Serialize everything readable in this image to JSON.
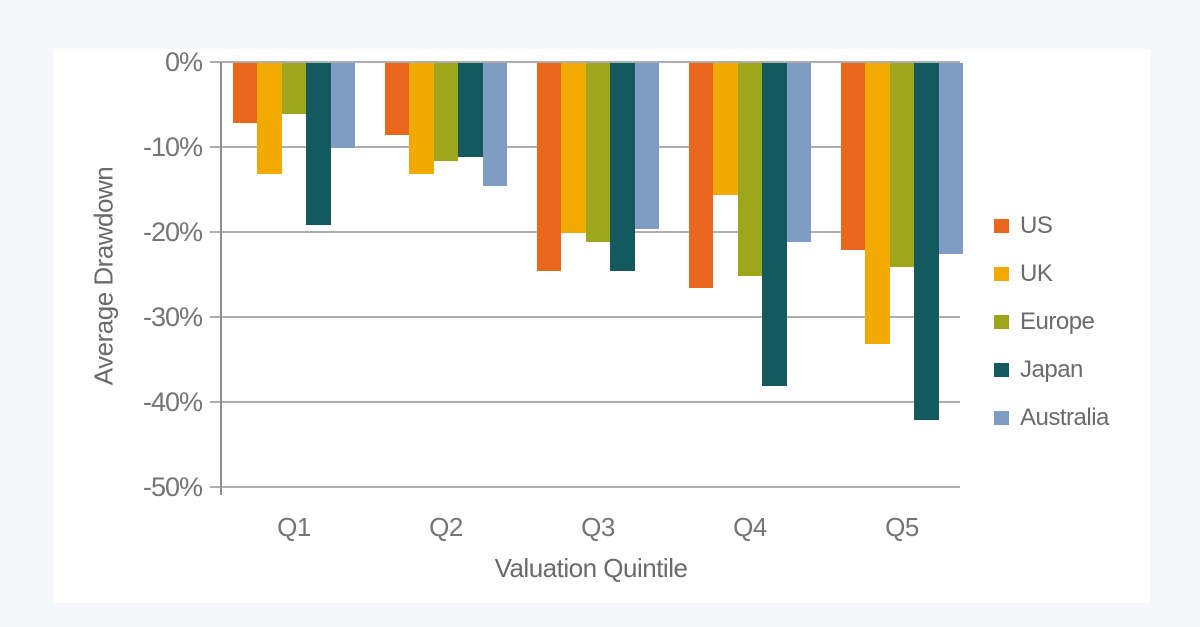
{
  "page": {
    "background_color": "#f5f7fa",
    "panel_color": "#ffffff",
    "gridline_color": "#aeaeae",
    "axis_line_color": "#8e8e8e",
    "text_color": "#757575"
  },
  "chart_data": {
    "type": "bar",
    "title": "",
    "xlabel": "Valuation Quintile",
    "ylabel": "Average Drawdown",
    "categories": [
      "Q1",
      "Q2",
      "Q3",
      "Q4",
      "Q5"
    ],
    "series": [
      {
        "name": "US",
        "color": "#e8671c",
        "values": [
          -7,
          -8.5,
          -24.5,
          -26.5,
          -22
        ]
      },
      {
        "name": "UK",
        "color": "#f2a900",
        "values": [
          -13,
          -13,
          -20,
          -15.5,
          -33
        ]
      },
      {
        "name": "Europe",
        "color": "#9da51b",
        "values": [
          -6,
          -11.5,
          -21,
          -25,
          -24
        ]
      },
      {
        "name": "Japan",
        "color": "#14595d",
        "values": [
          -19,
          -11,
          -24.5,
          -38,
          -42
        ]
      },
      {
        "name": "Australia",
        "color": "#7e9cc4",
        "values": [
          -10,
          -14.5,
          -19.5,
          -21,
          -22.5
        ]
      }
    ],
    "ylim": [
      0,
      -50
    ],
    "yticks": [
      {
        "label": "0%",
        "value": 0
      },
      {
        "label": "-10%",
        "value": -10
      },
      {
        "label": "-20%",
        "value": -20
      },
      {
        "label": "-30%",
        "value": -30
      },
      {
        "label": "-40%",
        "value": -40
      },
      {
        "label": "-50%",
        "value": -50
      }
    ],
    "grid": true,
    "legend_position": "right",
    "unit": "%"
  }
}
